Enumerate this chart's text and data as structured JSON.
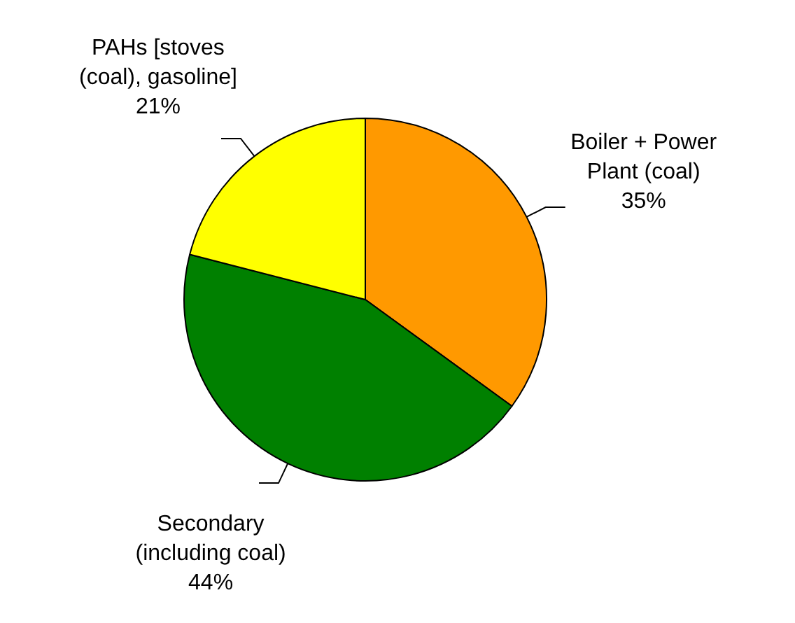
{
  "chart_data": {
    "type": "pie",
    "categories": [
      "Boiler + Power Plant (coal)",
      "Secondary (including coal)",
      "PAHs [stoves (coal), gasoline]"
    ],
    "values": [
      35,
      44,
      21
    ],
    "colors": [
      "#ff9900",
      "#008000",
      "#ffff00"
    ],
    "value_labels": [
      "35%",
      "44%",
      "21%"
    ],
    "legend": false
  }
}
